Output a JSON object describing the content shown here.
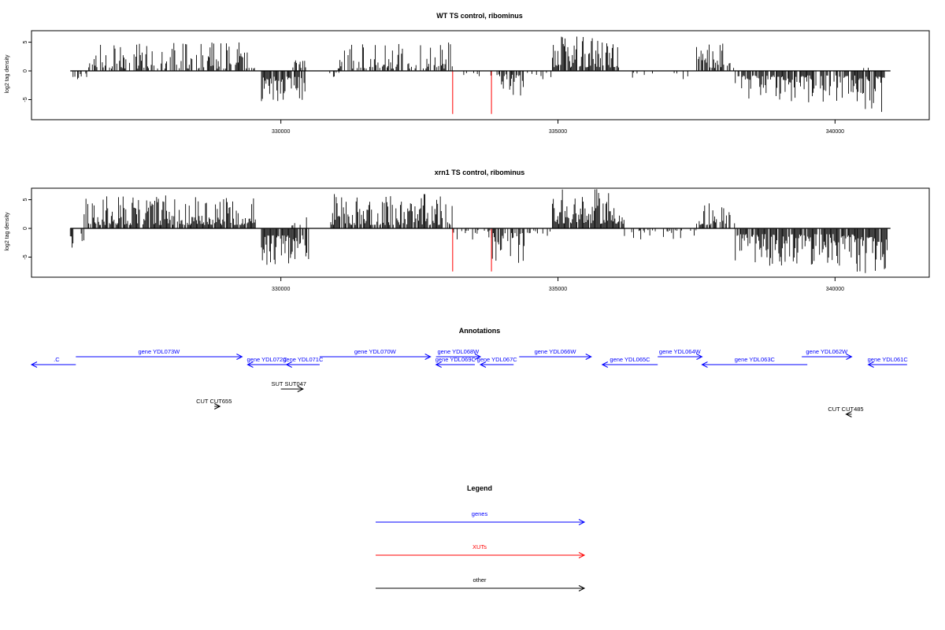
{
  "chart_data": [
    {
      "type": "bar",
      "title": "WT TS control, ribominus",
      "xlabel": "",
      "ylabel": "log2 tag density",
      "xlim": [
        325500,
        341700
      ],
      "ylim": [
        -8.5,
        7
      ],
      "xticks": [
        330000,
        335000,
        340000
      ],
      "yticks": [
        -5,
        0,
        5
      ],
      "grid": false,
      "baseline": {
        "from": 326200,
        "to": 341000,
        "value": 0
      },
      "series": [
        {
          "color": "#000000",
          "segments": [
            {
              "from": 326250,
              "to": 326500,
              "min": 0.4,
              "max": 1.5,
              "sign": -1,
              "density": 0.3
            },
            {
              "from": 326500,
              "to": 329550,
              "min": 0.4,
              "max": 5.0,
              "sign": 1,
              "density": 0.55
            },
            {
              "from": 329650,
              "to": 330450,
              "min": 1.0,
              "max": 5.5,
              "sign": -1,
              "density": 0.8
            },
            {
              "from": 330200,
              "to": 330450,
              "min": 0.5,
              "max": 2.0,
              "sign": 1,
              "density": 0.4
            },
            {
              "from": 330850,
              "to": 331500,
              "min": 0.3,
              "max": 1.2,
              "sign": -1,
              "density": 0.15
            },
            {
              "from": 331000,
              "to": 333100,
              "min": 0.4,
              "max": 5.0,
              "sign": 1,
              "density": 0.55
            },
            {
              "from": 333300,
              "to": 333800,
              "min": 0.3,
              "max": 1.2,
              "sign": -1,
              "density": 0.15
            },
            {
              "from": 333900,
              "to": 334400,
              "min": 0.6,
              "max": 4.5,
              "sign": -1,
              "density": 0.7
            },
            {
              "from": 334400,
              "to": 334900,
              "min": 0.3,
              "max": 1.5,
              "sign": -1,
              "density": 0.2
            },
            {
              "from": 334900,
              "to": 336100,
              "min": 0.6,
              "max": 6.0,
              "sign": 1,
              "density": 0.85
            },
            {
              "from": 336100,
              "to": 337500,
              "min": 0.3,
              "max": 1.8,
              "sign": -1,
              "density": 0.18
            },
            {
              "from": 337500,
              "to": 338200,
              "min": 0.5,
              "max": 5.0,
              "sign": 1,
              "density": 0.55
            },
            {
              "from": 338200,
              "to": 340400,
              "min": 0.8,
              "max": 5.5,
              "sign": -1,
              "density": 0.75
            },
            {
              "from": 340400,
              "to": 340900,
              "min": 1.0,
              "max": 7.5,
              "sign": -1,
              "density": 0.9
            },
            {
              "from": 340500,
              "to": 340600,
              "min": 0.5,
              "max": 1.5,
              "sign": 1,
              "density": 0.3
            }
          ]
        },
        {
          "color": "#ff0000",
          "values": [
            {
              "x": 333100,
              "y": -7.5
            },
            {
              "x": 333800,
              "y": -7.5
            }
          ]
        }
      ]
    },
    {
      "type": "bar",
      "title": "xrn1 TS control, ribominus",
      "xlabel": "",
      "ylabel": "log2 tag density",
      "xlim": [
        325500,
        341700
      ],
      "ylim": [
        -8.5,
        7
      ],
      "xticks": [
        330000,
        335000,
        340000
      ],
      "yticks": [
        -5,
        0,
        5
      ],
      "grid": false,
      "baseline": {
        "from": 326200,
        "to": 341000,
        "value": 0
      },
      "series": [
        {
          "color": "#000000",
          "segments": [
            {
              "from": 326200,
              "to": 326450,
              "min": 0.8,
              "max": 3.5,
              "sign": -1,
              "density": 0.6
            },
            {
              "from": 326450,
              "to": 329550,
              "min": 0.6,
              "max": 6.0,
              "sign": 1,
              "density": 0.85
            },
            {
              "from": 329650,
              "to": 330500,
              "min": 1.2,
              "max": 6.5,
              "sign": -1,
              "density": 0.9
            },
            {
              "from": 330200,
              "to": 330500,
              "min": 0.5,
              "max": 2.5,
              "sign": 1,
              "density": 0.4
            },
            {
              "from": 330900,
              "to": 333100,
              "min": 0.6,
              "max": 6.0,
              "sign": 1,
              "density": 0.85
            },
            {
              "from": 333100,
              "to": 333800,
              "min": 0.3,
              "max": 2.0,
              "sign": -1,
              "density": 0.3
            },
            {
              "from": 333800,
              "to": 334400,
              "min": 0.8,
              "max": 6.0,
              "sign": -1,
              "density": 0.85
            },
            {
              "from": 334400,
              "to": 334900,
              "min": 0.3,
              "max": 2.0,
              "sign": -1,
              "density": 0.3
            },
            {
              "from": 334900,
              "to": 336200,
              "min": 0.8,
              "max": 7.0,
              "sign": 1,
              "density": 0.95
            },
            {
              "from": 336200,
              "to": 337500,
              "min": 0.3,
              "max": 2.0,
              "sign": -1,
              "density": 0.35
            },
            {
              "from": 337500,
              "to": 338200,
              "min": 0.6,
              "max": 5.0,
              "sign": 1,
              "density": 0.7
            },
            {
              "from": 338200,
              "to": 340400,
              "min": 1.0,
              "max": 6.5,
              "sign": -1,
              "density": 0.9
            },
            {
              "from": 340400,
              "to": 340950,
              "min": 1.5,
              "max": 8.0,
              "sign": -1,
              "density": 0.95
            }
          ]
        },
        {
          "color": "#ff0000",
          "values": [
            {
              "x": 333100,
              "y": -7.5
            },
            {
              "x": 333800,
              "y": -7.5
            }
          ]
        }
      ]
    }
  ],
  "annotations": {
    "title": "Annotations",
    "features": [
      {
        "label": ".C",
        "color": "#0000ff",
        "from": 325500,
        "to": 326300,
        "strand": "-",
        "row": 1
      },
      {
        "label": "gene YDL073W",
        "color": "#0000ff",
        "from": 326300,
        "to": 329300,
        "strand": "+",
        "row": 0
      },
      {
        "label": "gene YDL072C",
        "color": "#0000ff",
        "from": 329400,
        "to": 330100,
        "strand": "-",
        "row": 1
      },
      {
        "label": "gene YDL071C",
        "color": "#0000ff",
        "from": 330100,
        "to": 330700,
        "strand": "-",
        "row": 1
      },
      {
        "label": "gene YDL070W",
        "color": "#0000ff",
        "from": 330700,
        "to": 332700,
        "strand": "+",
        "row": 0
      },
      {
        "label": "gene YDL068W",
        "color": "#0000ff",
        "from": 332800,
        "to": 333600,
        "strand": "+",
        "row": 0
      },
      {
        "label": "gene YDL069C",
        "color": "#0000ff",
        "from": 332800,
        "to": 333500,
        "strand": "-",
        "row": 1
      },
      {
        "label": "gene YDL067C",
        "color": "#0000ff",
        "from": 333600,
        "to": 334200,
        "strand": "-",
        "row": 1
      },
      {
        "label": "gene YDL066W",
        "color": "#0000ff",
        "from": 334300,
        "to": 335600,
        "strand": "+",
        "row": 0
      },
      {
        "label": "gene YDL065C",
        "color": "#0000ff",
        "from": 335800,
        "to": 336800,
        "strand": "-",
        "row": 1
      },
      {
        "label": "gene YDL064W",
        "color": "#0000ff",
        "from": 336800,
        "to": 337600,
        "strand": "+",
        "row": 0
      },
      {
        "label": "gene YDL063C",
        "color": "#0000ff",
        "from": 337600,
        "to": 339500,
        "strand": "-",
        "row": 1
      },
      {
        "label": "gene YDL062W",
        "color": "#0000ff",
        "from": 339400,
        "to": 340300,
        "strand": "+",
        "row": 0
      },
      {
        "label": "gene YDL061C",
        "color": "#0000ff",
        "from": 340600,
        "to": 341300,
        "strand": "-",
        "row": 1
      },
      {
        "label": "SUT SUT047",
        "color": "#000000",
        "from": 330000,
        "to": 330400,
        "strand": "+",
        "row": 2
      },
      {
        "label": "CUT CUT655",
        "color": "#000000",
        "from": 328800,
        "to": 328900,
        "strand": "+",
        "row": 3
      },
      {
        "label": "CUT CUT485",
        "color": "#000000",
        "from": 340200,
        "to": 340300,
        "strand": "-",
        "row": 4
      }
    ]
  },
  "legend": {
    "title": "Legend",
    "items": [
      {
        "label": "genes",
        "color": "#0000ff"
      },
      {
        "label": "XUTs",
        "color": "#ff0000"
      },
      {
        "label": "other",
        "color": "#000000"
      }
    ]
  }
}
